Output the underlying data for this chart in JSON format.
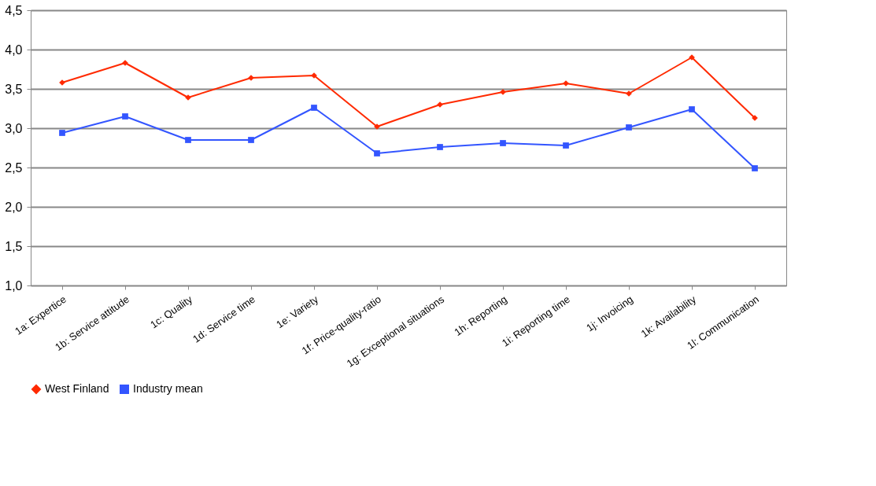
{
  "chart_data": {
    "type": "line",
    "categories": [
      "1a: Expertice",
      "1b: Service attitude",
      "1c: Quality",
      "1d: Service time",
      "1e: Variety",
      "1f: Price-quality-ratio",
      "1g: Exceptional situations",
      "1h: Reporting",
      "1i: Reporting time",
      "1j: Invoicing",
      "1k: Availability",
      "1l: Communication"
    ],
    "series": [
      {
        "name": "West Finland",
        "color": "#ff2a00",
        "marker": "diamond",
        "values": [
          3.58,
          3.83,
          3.39,
          3.64,
          3.67,
          3.02,
          3.3,
          3.46,
          3.57,
          3.44,
          3.9,
          3.13
        ]
      },
      {
        "name": "Industry mean",
        "color": "#3355ff",
        "marker": "square",
        "values": [
          2.94,
          3.15,
          2.85,
          2.85,
          3.26,
          2.68,
          2.76,
          2.81,
          2.78,
          3.01,
          3.24,
          2.49
        ]
      }
    ],
    "ylim": [
      1.0,
      4.5
    ],
    "yticks": [
      {
        "value": 1.0,
        "label": "1,0"
      },
      {
        "value": 1.5,
        "label": "1,5"
      },
      {
        "value": 2.0,
        "label": "2,0"
      },
      {
        "value": 2.5,
        "label": "2,5"
      },
      {
        "value": 3.0,
        "label": "3,0"
      },
      {
        "value": 3.5,
        "label": "3,5"
      },
      {
        "value": 4.0,
        "label": "4,0"
      },
      {
        "value": 4.5,
        "label": "4,5"
      }
    ],
    "grid": "y",
    "legend": "bottom"
  }
}
